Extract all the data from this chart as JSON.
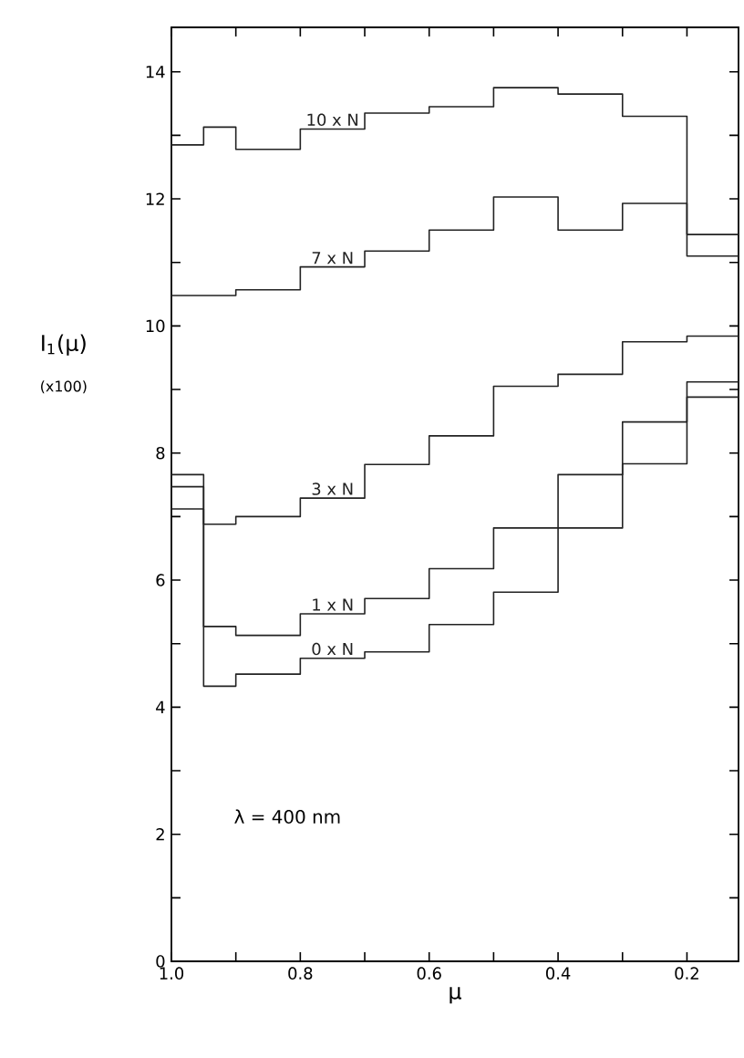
{
  "chart_data": {
    "type": "step",
    "xlabel": "μ",
    "ylabel": "I$_{1}$(μ)",
    "annotations": [
      "(x100)",
      "λ = 400 nm"
    ],
    "xlim": [
      1.0,
      0.12
    ],
    "ylim": [
      0,
      14.7
    ],
    "xticks": [
      {
        "value": 1.0,
        "label": "1.0"
      },
      {
        "value": 0.9,
        "label": null
      },
      0.8,
      {
        "value": 0.7,
        "label": null
      },
      0.6,
      {
        "value": 0.5,
        "label": null
      },
      0.4,
      {
        "value": 0.3,
        "label": null
      },
      0.2
    ],
    "yticks": [
      0,
      {
        "value": 1,
        "label": null
      },
      2,
      {
        "value": 3,
        "label": null
      },
      4,
      {
        "value": 5,
        "label": null
      },
      6,
      {
        "value": 7,
        "label": null
      },
      8,
      {
        "value": 9,
        "label": null
      },
      10,
      {
        "value": 11,
        "label": null
      },
      12,
      {
        "value": 13,
        "label": null
      },
      14
    ],
    "grid": false,
    "marker": "none",
    "line_style": "solid",
    "x": [
      1.0,
      0.95,
      0.9,
      0.8,
      0.7,
      0.6,
      0.5,
      0.4,
      0.3,
      0.2,
      0.12
    ],
    "series": [
      {
        "name": "10 x N",
        "color": "#222222",
        "values": [
          12.85,
          13.13,
          12.78,
          13.1,
          13.35,
          13.45,
          13.75,
          13.65,
          13.3,
          11.1,
          11.1
        ]
      },
      {
        "name": "7 x N",
        "color": "#222222",
        "values": [
          10.48,
          10.48,
          10.57,
          10.93,
          11.18,
          11.51,
          12.03,
          11.51,
          11.93,
          11.44,
          11.44
        ]
      },
      {
        "name": "3 x N",
        "color": "#222222",
        "values": [
          7.66,
          6.88,
          7.0,
          7.29,
          7.82,
          8.27,
          9.05,
          9.24,
          9.75,
          9.84,
          9.84
        ]
      },
      {
        "name": "1 x N",
        "color": "#222222",
        "values": [
          7.47,
          5.27,
          5.13,
          5.47,
          5.71,
          6.18,
          6.82,
          7.66,
          8.49,
          9.12,
          9.12
        ]
      },
      {
        "name": "0 x N",
        "color": "#222222",
        "values": [
          7.12,
          4.33,
          4.52,
          4.77,
          4.87,
          5.3,
          5.81,
          6.82,
          7.83,
          8.88,
          8.88
        ]
      }
    ]
  }
}
